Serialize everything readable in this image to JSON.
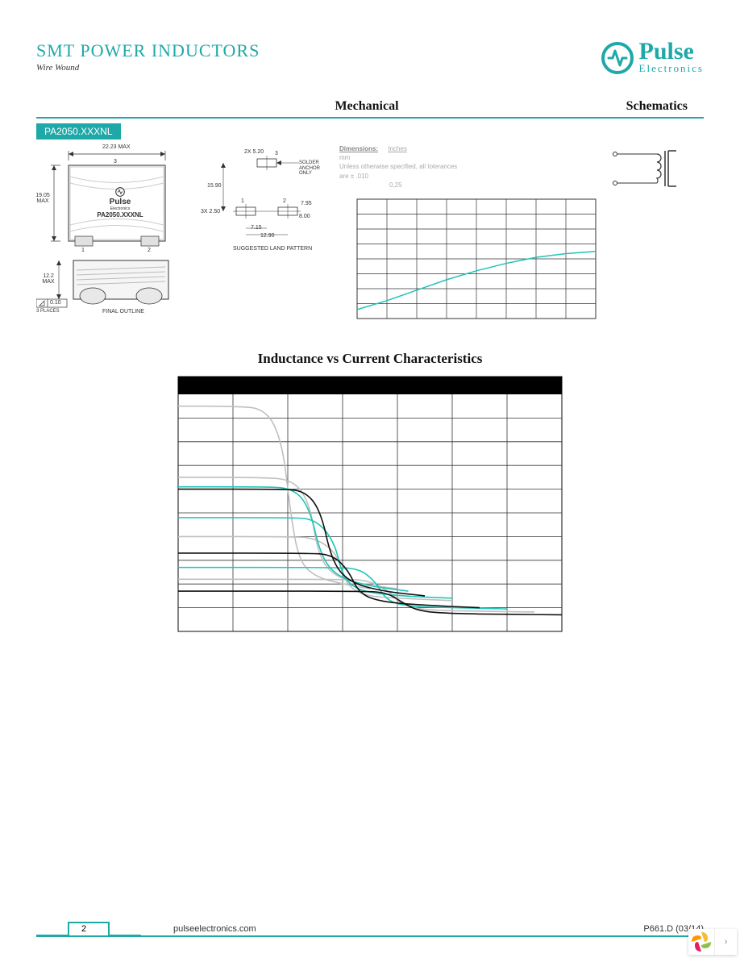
{
  "header": {
    "title": "SMT POWER INDUCTORS",
    "subtitle": "Wire Wound",
    "logo_name": "Pulse",
    "logo_sub": "Electronics"
  },
  "sections": {
    "mechanical": "Mechanical",
    "schematics": "Schematics"
  },
  "part_tag": "PA2050.XXXNL",
  "dims": {
    "width": "22.23 MAX",
    "height": "19.05 MAX",
    "pkg_label": "PA2050.XXXNL",
    "pkg_brand": "Pulse",
    "pkg_brand_sub": "Electronics",
    "side_h": "12.2 MAX",
    "flat": "0.10",
    "places": "3 PLACES",
    "final": "FINAL OUTLINE",
    "land_label": "SUGGESTED LAND PATTERN",
    "lp_2x": "2X 5.20",
    "lp_h": "15.90",
    "lp_3x": "3X 2.50",
    "lp_w1": "7.15",
    "lp_w2": "12.90",
    "lp_w3": "8.00",
    "lp_w4": "7.95",
    "lp_anchor": "SOLDER ANCHOR ONLY",
    "pin1": "1",
    "pin2": "2",
    "pin3": "3"
  },
  "notes": {
    "dim_label": "Dimensions:",
    "dim_unit": "Inches",
    "unit2": "mm",
    "tol": "Unless otherwise specified, all tolerances are ± .010",
    "tol2": "0,25"
  },
  "temp_chart": {
    "type": "line",
    "grid_color": "#333333",
    "bg_color": "#ffffff",
    "line_color": "#1fc4b8",
    "line_width": 1.5,
    "xlim": [
      0,
      8
    ],
    "ylim": [
      0,
      8
    ],
    "xticks": 8,
    "yticks": 8,
    "points": [
      [
        0,
        0.6
      ],
      [
        1,
        1.2
      ],
      [
        2,
        1.9
      ],
      [
        3,
        2.6
      ],
      [
        4,
        3.2
      ],
      [
        5,
        3.7
      ],
      [
        6,
        4.1
      ],
      [
        7,
        4.35
      ],
      [
        8,
        4.5
      ]
    ]
  },
  "lv_title": "Inductance vs Current Characteristics",
  "lv_chart": {
    "type": "line",
    "bg_color": "#ffffff",
    "header_bg": "#000000",
    "grid_color": "#333333",
    "xlim": [
      0,
      7
    ],
    "ylim": [
      0,
      10
    ],
    "xticks": 7,
    "yticks": 10,
    "line_width": 1.6,
    "series": [
      {
        "color": "#bfbfbf",
        "points": [
          [
            0,
            9.5
          ],
          [
            1,
            9.5
          ],
          [
            1.6,
            9.4
          ],
          [
            1.9,
            8.0
          ],
          [
            2.05,
            5.0
          ],
          [
            2.2,
            3.0
          ],
          [
            2.5,
            2.3
          ],
          [
            3,
            2.0
          ],
          [
            3.5,
            1.8
          ]
        ]
      },
      {
        "color": "#bfbfbf",
        "points": [
          [
            0,
            6.5
          ],
          [
            1.5,
            6.5
          ],
          [
            2.1,
            6.4
          ],
          [
            2.4,
            5.4
          ],
          [
            2.55,
            3.3
          ],
          [
            2.8,
            2.4
          ],
          [
            3.3,
            2.0
          ],
          [
            4,
            1.8
          ]
        ]
      },
      {
        "color": "#bfbfbf",
        "points": [
          [
            0,
            4.0
          ],
          [
            2,
            4.0
          ],
          [
            2.5,
            3.95
          ],
          [
            2.9,
            3.3
          ],
          [
            3.05,
            2.0
          ],
          [
            3.4,
            1.5
          ],
          [
            4,
            1.4
          ],
          [
            5,
            1.3
          ]
        ]
      },
      {
        "color": "#bfbfbf",
        "points": [
          [
            0,
            2.2
          ],
          [
            3,
            2.2
          ],
          [
            3.5,
            2.15
          ],
          [
            3.9,
            1.6
          ],
          [
            4.1,
            1.1
          ],
          [
            4.5,
            0.9
          ],
          [
            5.5,
            0.85
          ],
          [
            6.5,
            0.82
          ]
        ]
      },
      {
        "color": "#1fc4b8",
        "points": [
          [
            0,
            6.1
          ],
          [
            1.5,
            6.1
          ],
          [
            2.1,
            6.05
          ],
          [
            2.4,
            5.2
          ],
          [
            2.6,
            3.2
          ],
          [
            2.9,
            2.3
          ],
          [
            3.5,
            1.9
          ],
          [
            4.2,
            1.7
          ]
        ]
      },
      {
        "color": "#1fc4b8",
        "points": [
          [
            0,
            4.8
          ],
          [
            2,
            4.8
          ],
          [
            2.5,
            4.75
          ],
          [
            2.85,
            3.8
          ],
          [
            3.0,
            2.3
          ],
          [
            3.3,
            1.7
          ],
          [
            4,
            1.5
          ],
          [
            5,
            1.4
          ]
        ]
      },
      {
        "color": "#1fc4b8",
        "points": [
          [
            0,
            2.7
          ],
          [
            2.8,
            2.7
          ],
          [
            3.3,
            2.65
          ],
          [
            3.6,
            2.1
          ],
          [
            3.8,
            1.3
          ],
          [
            4.2,
            1.05
          ],
          [
            5,
            1.0
          ],
          [
            6,
            0.95
          ]
        ]
      },
      {
        "color": "#111111",
        "points": [
          [
            0,
            6.0
          ],
          [
            1.8,
            6.0
          ],
          [
            2.3,
            5.95
          ],
          [
            2.6,
            5.1
          ],
          [
            2.8,
            3.0
          ],
          [
            3.1,
            2.1
          ],
          [
            3.7,
            1.7
          ],
          [
            4.5,
            1.5
          ]
        ]
      },
      {
        "color": "#111111",
        "points": [
          [
            0,
            3.3
          ],
          [
            2.3,
            3.3
          ],
          [
            2.8,
            3.25
          ],
          [
            3.1,
            2.6
          ],
          [
            3.3,
            1.6
          ],
          [
            3.7,
            1.25
          ],
          [
            4.5,
            1.1
          ],
          [
            5.5,
            1.0
          ]
        ]
      },
      {
        "color": "#111111",
        "points": [
          [
            0,
            1.7
          ],
          [
            3.3,
            1.7
          ],
          [
            3.8,
            1.65
          ],
          [
            4.1,
            1.2
          ],
          [
            4.4,
            0.85
          ],
          [
            5,
            0.75
          ],
          [
            6,
            0.72
          ],
          [
            7,
            0.7
          ]
        ]
      }
    ]
  },
  "footer": {
    "page": "2",
    "url": "pulseelectronics.com",
    "doc": "P661.D (03/14)"
  },
  "colors": {
    "brand": "#1fa8a8",
    "teal_line": "#1fc4b8"
  }
}
